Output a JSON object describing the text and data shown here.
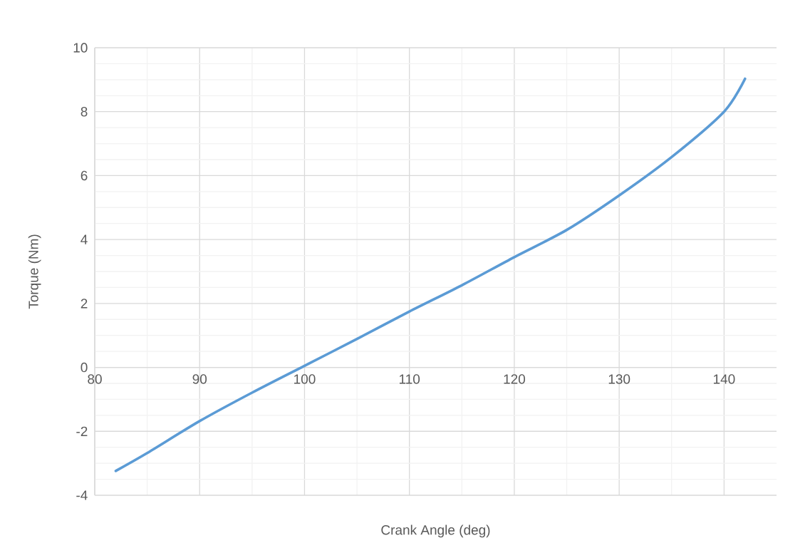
{
  "chart_data": {
    "type": "line",
    "xlabel": "Crank Angle (deg)",
    "ylabel": "Torque (Nm)",
    "x": [
      82,
      85,
      90,
      95,
      100,
      105,
      110,
      115,
      120,
      125,
      130,
      135,
      140,
      142
    ],
    "series": [
      {
        "color": "#5b9bd5",
        "values": [
          -3.24,
          -2.68,
          -1.68,
          -0.79,
          0.05,
          0.89,
          1.75,
          2.57,
          3.45,
          4.3,
          5.38,
          6.58,
          8.0,
          9.03
        ]
      }
    ],
    "xlim": [
      80,
      145
    ],
    "ylim": [
      -4,
      10
    ],
    "xticks": [
      80,
      90,
      100,
      110,
      120,
      130,
      140
    ],
    "yticks": [
      -4,
      -2,
      0,
      2,
      4,
      6,
      8,
      10
    ],
    "grid": true,
    "marker": "none",
    "line_style": "solid"
  }
}
